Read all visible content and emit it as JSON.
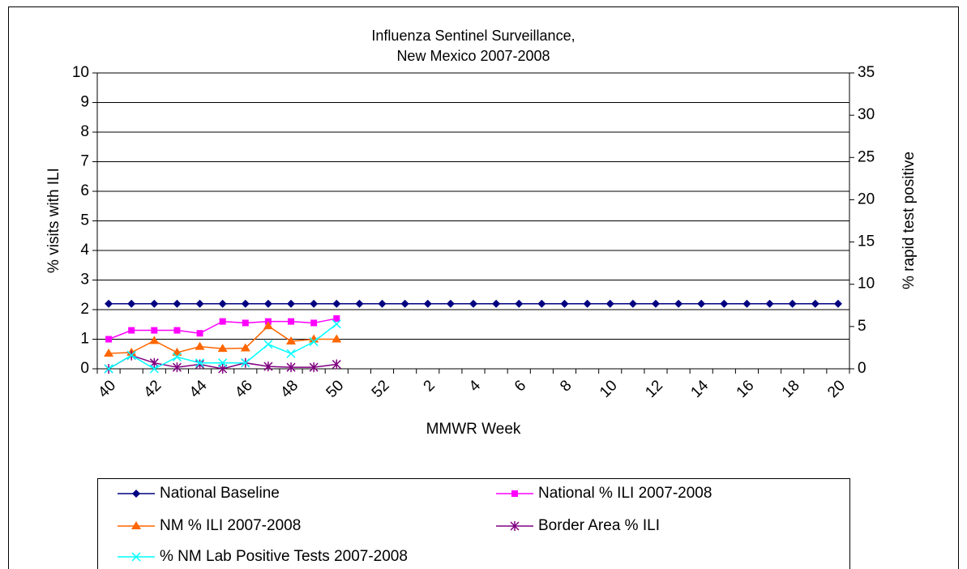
{
  "chart_data": {
    "type": "line",
    "title": [
      "Influenza Sentinel Surveillance,",
      "New Mexico 2007-2008"
    ],
    "x_label": "MMWR Week",
    "y_label": "% visits with ILI",
    "y2_label": "% rapid test positive",
    "categories": [
      "40",
      null,
      "42",
      null,
      "44",
      null,
      "46",
      null,
      "48",
      null,
      "50",
      null,
      "52",
      null,
      "2",
      null,
      "4",
      null,
      "6",
      null,
      "8",
      null,
      "10",
      null,
      "12",
      null,
      "14",
      null,
      "16",
      null,
      "18",
      null,
      "20"
    ],
    "ylim": [
      0,
      10
    ],
    "yticks": [
      0,
      1,
      2,
      3,
      4,
      5,
      6,
      7,
      8,
      9,
      10
    ],
    "y2lim": [
      0,
      35
    ],
    "y2ticks": [
      0,
      5,
      10,
      15,
      20,
      25,
      30,
      35
    ],
    "grid": true,
    "series": [
      {
        "name": "National Baseline",
        "color": "#000080",
        "marker": "diamond",
        "values": [
          2.2,
          2.2,
          2.2,
          2.2,
          2.2,
          2.2,
          2.2,
          2.2,
          2.2,
          2.2,
          2.2,
          2.2,
          2.2,
          2.2,
          2.2,
          2.2,
          2.2,
          2.2,
          2.2,
          2.2,
          2.2,
          2.2,
          2.2,
          2.2,
          2.2,
          2.2,
          2.2,
          2.2,
          2.2,
          2.2,
          2.2,
          2.2,
          2.2
        ]
      },
      {
        "name": "National % ILI 2007-2008",
        "color": "#ff00ff",
        "marker": "square",
        "values": [
          1.0,
          1.3,
          1.3,
          1.3,
          1.2,
          1.6,
          1.55,
          1.6,
          1.6,
          1.55,
          1.7,
          null,
          null,
          null,
          null,
          null,
          null,
          null,
          null,
          null,
          null,
          null,
          null,
          null,
          null,
          null,
          null,
          null,
          null,
          null,
          null,
          null,
          null
        ]
      },
      {
        "name": "NM % ILI 2007-2008",
        "color": "#ff6600",
        "marker": "triangle",
        "values": [
          0.52,
          0.55,
          0.95,
          0.55,
          0.75,
          0.68,
          0.7,
          1.45,
          0.93,
          1.0,
          1.0,
          null,
          null,
          null,
          null,
          null,
          null,
          null,
          null,
          null,
          null,
          null,
          null,
          null,
          null,
          null,
          null,
          null,
          null,
          null,
          null,
          null,
          null
        ]
      },
      {
        "name": "Border Area % ILI",
        "color": "#800080",
        "marker": "star",
        "values": [
          0.0,
          0.45,
          0.2,
          0.05,
          0.15,
          0.0,
          0.2,
          0.08,
          0.05,
          0.05,
          0.15,
          null,
          null,
          null,
          null,
          null,
          null,
          null,
          null,
          null,
          null,
          null,
          null,
          null,
          null,
          null,
          null,
          null,
          null,
          null,
          null,
          null,
          null
        ]
      },
      {
        "name": "% NM Lab Positive Tests 2007-2008",
        "color": "#00ffff",
        "marker": "x",
        "axis": "y2",
        "values": [
          0.0,
          1.6,
          0.0,
          1.4,
          0.7,
          0.7,
          0.7,
          2.9,
          1.8,
          3.2,
          5.3,
          null,
          null,
          null,
          null,
          null,
          null,
          null,
          null,
          null,
          null,
          null,
          null,
          null,
          null,
          null,
          null,
          null,
          null,
          null,
          null,
          null,
          null
        ]
      }
    ]
  }
}
